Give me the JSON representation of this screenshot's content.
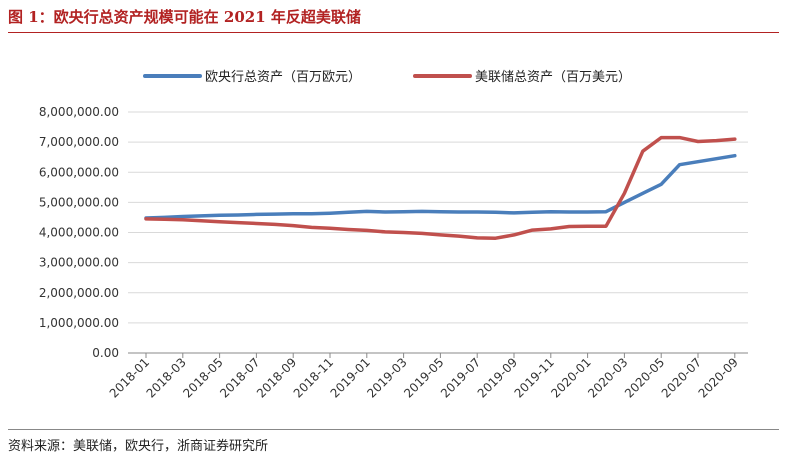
{
  "figure_title": "图 1：欧央行总资产规模可能在 2021 年反超美联储",
  "source": "资料来源：美联储，欧央行，浙商证券研究所",
  "chart_data": {
    "type": "line",
    "title": "",
    "xlabel": "",
    "ylabel": "",
    "ylim": [
      0,
      8000000
    ],
    "yticks": [
      "0.00",
      "1,000,000.00",
      "2,000,000.00",
      "3,000,000.00",
      "4,000,000.00",
      "5,000,000.00",
      "6,000,000.00",
      "7,000,000.00",
      "8,000,000.00"
    ],
    "x_tick_labels": [
      "2018-01",
      "2018-03",
      "2018-05",
      "2018-07",
      "2018-09",
      "2018-11",
      "2019-01",
      "2019-03",
      "2019-05",
      "2019-07",
      "2019-09",
      "2019-11",
      "2020-01",
      "2020-03",
      "2020-05",
      "2020-07",
      "2020-09"
    ],
    "categories": [
      "2018-01",
      "2018-02",
      "2018-03",
      "2018-04",
      "2018-05",
      "2018-06",
      "2018-07",
      "2018-08",
      "2018-09",
      "2018-10",
      "2018-11",
      "2018-12",
      "2019-01",
      "2019-02",
      "2019-03",
      "2019-04",
      "2019-05",
      "2019-06",
      "2019-07",
      "2019-08",
      "2019-09",
      "2019-10",
      "2019-11",
      "2019-12",
      "2020-01",
      "2020-02",
      "2020-03",
      "2020-04",
      "2020-05",
      "2020-06",
      "2020-07",
      "2020-08",
      "2020-09"
    ],
    "legend_position": "top",
    "grid": true,
    "series": [
      {
        "name": "欧央行总资产（百万欧元）",
        "color": "#4a7ebb",
        "values": [
          4480000,
          4500000,
          4530000,
          4550000,
          4570000,
          4580000,
          4600000,
          4610000,
          4620000,
          4620000,
          4640000,
          4670000,
          4700000,
          4680000,
          4690000,
          4700000,
          4690000,
          4680000,
          4680000,
          4670000,
          4650000,
          4670000,
          4690000,
          4680000,
          4680000,
          4690000,
          5000000,
          5300000,
          5600000,
          6250000,
          6350000,
          6450000,
          6550000
        ]
      },
      {
        "name": "美联储总资产（百万美元）",
        "color": "#c0504d",
        "values": [
          4450000,
          4440000,
          4420000,
          4390000,
          4360000,
          4330000,
          4300000,
          4270000,
          4230000,
          4170000,
          4140000,
          4100000,
          4070000,
          4020000,
          4000000,
          3970000,
          3920000,
          3880000,
          3820000,
          3810000,
          3920000,
          4080000,
          4120000,
          4200000,
          4210000,
          4210000,
          5300000,
          6700000,
          7150000,
          7150000,
          7020000,
          7050000,
          7100000
        ]
      }
    ]
  }
}
